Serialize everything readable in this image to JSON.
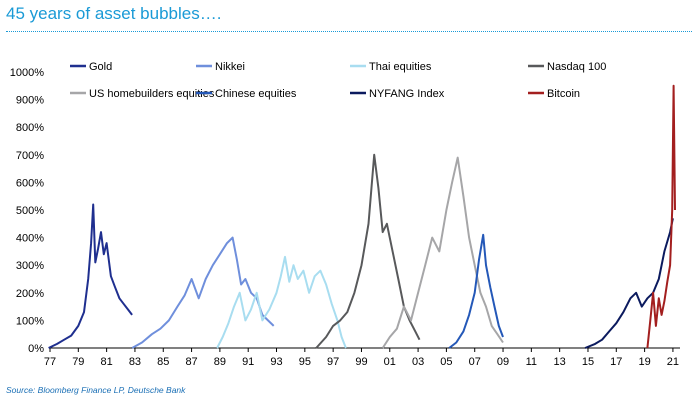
{
  "title": "45 years of asset bubbles….",
  "source": "Source: Bloomberg Finance LP, Deutsche Bank",
  "chart_data": {
    "type": "line",
    "title": "45 years of asset bubbles….",
    "xlabel": "",
    "ylabel": "",
    "xlim": [
      1977,
      2021.5
    ],
    "ylim": [
      0,
      1000
    ],
    "x_ticks": [
      "77",
      "79",
      "81",
      "83",
      "85",
      "87",
      "89",
      "91",
      "93",
      "95",
      "97",
      "99",
      "01",
      "03",
      "05",
      "07",
      "09",
      "11",
      "13",
      "15",
      "17",
      "19",
      "21"
    ],
    "x_tick_years": [
      1977,
      1979,
      1981,
      1983,
      1985,
      1987,
      1989,
      1991,
      1993,
      1995,
      1997,
      1999,
      2001,
      2003,
      2005,
      2007,
      2009,
      2011,
      2013,
      2015,
      2017,
      2019,
      2021
    ],
    "y_ticks": [
      "0%",
      "100%",
      "200%",
      "300%",
      "400%",
      "500%",
      "600%",
      "700%",
      "800%",
      "900%",
      "1000%"
    ],
    "y_tick_values": [
      0,
      100,
      200,
      300,
      400,
      500,
      600,
      700,
      800,
      900,
      1000
    ],
    "grid": false,
    "legend_position": "top",
    "series": [
      {
        "name": "Gold",
        "color": "#1f2f8f",
        "x": [
          1976.9,
          1977.5,
          1978.0,
          1978.5,
          1979.0,
          1979.4,
          1979.7,
          1979.9,
          1980.05,
          1980.2,
          1980.4,
          1980.6,
          1980.8,
          1981.0,
          1981.3,
          1981.6,
          1981.9,
          1982.2,
          1982.5,
          1982.8
        ],
        "values": [
          0,
          15,
          30,
          45,
          80,
          130,
          250,
          380,
          520,
          310,
          360,
          420,
          340,
          380,
          260,
          220,
          180,
          160,
          140,
          120
        ]
      },
      {
        "name": "Nikkei",
        "color": "#6f8fdc",
        "x": [
          1982.8,
          1983.5,
          1984.2,
          1984.8,
          1985.4,
          1986.0,
          1986.5,
          1987.0,
          1987.5,
          1988.0,
          1988.5,
          1989.0,
          1989.5,
          1989.9,
          1990.2,
          1990.5,
          1990.8,
          1991.2,
          1991.6,
          1992.0,
          1992.4,
          1992.8
        ],
        "values": [
          0,
          20,
          50,
          70,
          100,
          150,
          190,
          250,
          180,
          250,
          300,
          340,
          380,
          400,
          320,
          230,
          250,
          200,
          180,
          120,
          100,
          80
        ]
      },
      {
        "name": "Thai equities",
        "color": "#a8ddf0",
        "x": [
          1988.8,
          1989.2,
          1989.6,
          1990.0,
          1990.4,
          1990.8,
          1991.2,
          1991.6,
          1992.0,
          1992.5,
          1993.0,
          1993.3,
          1993.6,
          1993.9,
          1994.2,
          1994.5,
          1994.9,
          1995.3,
          1995.7,
          1996.1,
          1996.5,
          1996.9,
          1997.3,
          1997.6,
          1997.9
        ],
        "values": [
          0,
          40,
          90,
          150,
          200,
          100,
          140,
          200,
          100,
          140,
          200,
          260,
          330,
          240,
          300,
          250,
          280,
          200,
          260,
          280,
          230,
          160,
          100,
          40,
          0
        ]
      },
      {
        "name": "Nasdaq 100",
        "color": "#58595b",
        "x": [
          1995.8,
          1996.5,
          1997.0,
          1997.5,
          1998.0,
          1998.5,
          1999.0,
          1999.5,
          1999.9,
          2000.2,
          2000.5,
          2000.8,
          2001.2,
          2001.6,
          2002.0,
          2002.4,
          2002.8,
          2003.1
        ],
        "values": [
          0,
          40,
          80,
          100,
          130,
          200,
          300,
          450,
          700,
          580,
          420,
          450,
          350,
          250,
          150,
          100,
          60,
          30
        ]
      },
      {
        "name": "US homebuilders equities",
        "color": "#a6a6a8",
        "x": [
          2000.5,
          2001.0,
          2001.5,
          2002.0,
          2002.5,
          2003.0,
          2003.5,
          2004.0,
          2004.5,
          2005.0,
          2005.4,
          2005.8,
          2006.2,
          2006.6,
          2007.0,
          2007.4,
          2007.8,
          2008.2,
          2008.6,
          2009.0
        ],
        "values": [
          0,
          40,
          70,
          150,
          100,
          200,
          300,
          400,
          350,
          500,
          600,
          690,
          550,
          400,
          300,
          200,
          150,
          80,
          50,
          20
        ]
      },
      {
        "name": "Chinese equities",
        "color": "#2458b8",
        "x": [
          2005.2,
          2005.7,
          2006.2,
          2006.6,
          2007.0,
          2007.3,
          2007.6,
          2007.8,
          2008.1,
          2008.4,
          2008.7,
          2009.0
        ],
        "values": [
          0,
          20,
          60,
          120,
          200,
          320,
          410,
          300,
          220,
          150,
          80,
          40
        ]
      },
      {
        "name": "NYFANG Index",
        "color": "#0b1a5e",
        "x": [
          2014.8,
          2015.5,
          2016.0,
          2016.5,
          2017.0,
          2017.5,
          2018.0,
          2018.4,
          2018.8,
          2019.2,
          2019.6,
          2020.0,
          2020.4,
          2020.8,
          2021.0
        ],
        "values": [
          0,
          15,
          30,
          60,
          90,
          130,
          180,
          200,
          150,
          180,
          200,
          250,
          350,
          420,
          470
        ]
      },
      {
        "name": "Bitcoin",
        "color": "#a31f1f",
        "x": [
          2019.2,
          2019.4,
          2019.6,
          2019.8,
          2020.0,
          2020.2,
          2020.4,
          2020.6,
          2020.8,
          2020.95,
          2021.05,
          2021.15
        ],
        "values": [
          0,
          100,
          200,
          80,
          180,
          120,
          170,
          240,
          300,
          500,
          950,
          500
        ]
      }
    ]
  }
}
